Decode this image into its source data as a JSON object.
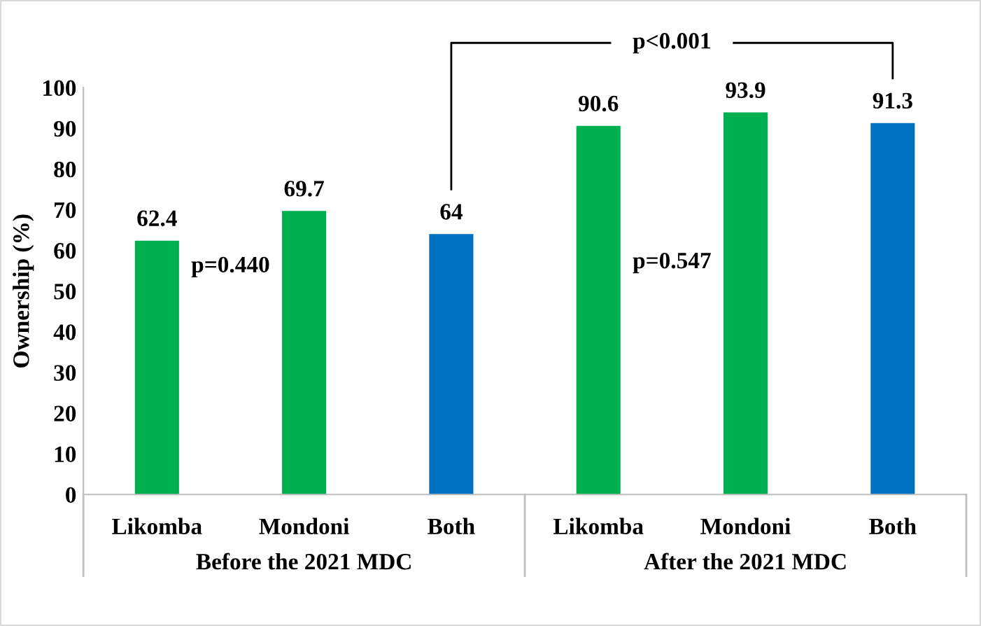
{
  "chart_data": {
    "type": "bar",
    "ylabel": "Ownership (%)",
    "categories": [
      "Likomba",
      "Mondoni",
      "Both",
      "Likomba",
      "Mondoni",
      "Both"
    ],
    "values": [
      62.4,
      69.7,
      64,
      90.6,
      93.9,
      91.3
    ],
    "colors": [
      "#00b050",
      "#00b050",
      "#0070c0",
      "#00b050",
      "#00b050",
      "#0070c0"
    ],
    "ylim": [
      0,
      100
    ],
    "yticks": [
      0,
      10,
      20,
      30,
      40,
      50,
      60,
      70,
      80,
      90,
      100
    ],
    "grid": false,
    "data_labels": true,
    "annotations": [
      "p=0.440",
      "p=0.547",
      "p<0.001",
      "Before the 2021 MDC",
      "After the 2021 MDC"
    ]
  }
}
